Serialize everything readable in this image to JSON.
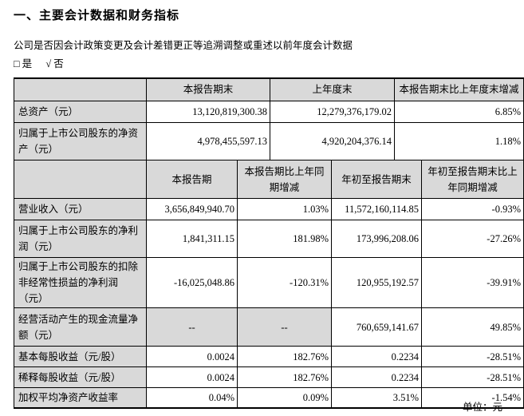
{
  "page": {
    "title": "一、主要会计数据和财务指标",
    "restatement_question": "公司是否因会计政策变更及会计差错更正等追溯调整或重述以前年度会计数据",
    "choice_yes": "□ 是",
    "choice_no": "√ 否",
    "unit_label": "单位：元"
  },
  "colors": {
    "shade_bg": "#d9d9d9",
    "border": "#000000",
    "text": "#000000"
  },
  "table1": {
    "headers": [
      "",
      "本报告期末",
      "上年度末",
      "本报告期末比上年度末增减"
    ],
    "rows": [
      {
        "label": "总资产（元）",
        "current": "13,120,819,300.38",
        "prior": "12,279,376,179.02",
        "change": "6.85%"
      },
      {
        "label": "归属于上市公司股东的净资产（元）",
        "current": "4,978,455,597.13",
        "prior": "4,920,204,376.14",
        "change": "1.18%"
      }
    ]
  },
  "table2": {
    "headers": [
      "",
      "本报告期",
      "本报告期比上年同期增减",
      "年初至报告期末",
      "年初至报告期末比上年同期增减"
    ],
    "rows": [
      {
        "label": "营业收入（元）",
        "period": "3,656,849,940.70",
        "period_change": "1.03%",
        "ytd": "11,572,160,114.85",
        "ytd_change": "-0.93%"
      },
      {
        "label": "归属于上市公司股东的净利润（元）",
        "period": "1,841,311.15",
        "period_change": "181.98%",
        "ytd": "173,996,208.06",
        "ytd_change": "-27.26%"
      },
      {
        "label": "归属于上市公司股东的扣除非经常性损益的净利润（元）",
        "period": "-16,025,048.86",
        "period_change": "-120.31%",
        "ytd": "120,955,192.57",
        "ytd_change": "-39.91%"
      },
      {
        "label": "经营活动产生的现金流量净额（元）",
        "period": "--",
        "period_change": "--",
        "ytd": "760,659,141.67",
        "ytd_change": "49.85%"
      },
      {
        "label": "基本每股收益（元/股）",
        "period": "0.0024",
        "period_change": "182.76%",
        "ytd": "0.2234",
        "ytd_change": "-28.51%"
      },
      {
        "label": "稀释每股收益（元/股）",
        "period": "0.0024",
        "period_change": "182.76%",
        "ytd": "0.2234",
        "ytd_change": "-28.51%"
      },
      {
        "label": "加权平均净资产收益率",
        "period": "0.04%",
        "period_change": "0.09%",
        "ytd": "3.51%",
        "ytd_change": "-1.54%"
      }
    ]
  }
}
